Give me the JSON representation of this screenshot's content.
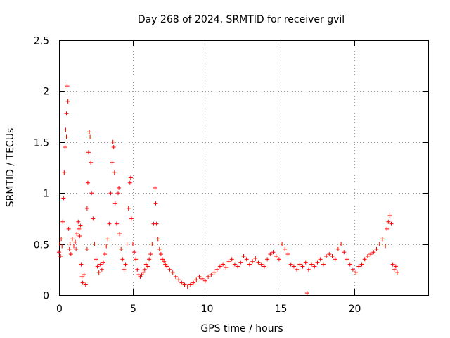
{
  "chart_data": {
    "type": "scatter",
    "title": "Day 268 of 2024, SRMTID for receiver gvil",
    "xlabel": "GPS time / hours",
    "ylabel": "SRMTID / TECUs",
    "xlim": [
      0,
      25
    ],
    "ylim": [
      0,
      2.5
    ],
    "xticks": [
      0,
      5,
      10,
      15,
      20
    ],
    "xtick_labels": [
      "0",
      "5",
      "10",
      "15",
      "20"
    ],
    "yticks": [
      0,
      0.5,
      1,
      1.5,
      2,
      2.5
    ],
    "ytick_labels": [
      "0",
      "0.5",
      "1",
      "1.5",
      "2",
      "2.5"
    ],
    "grid": true,
    "marker": "+",
    "color": "#ff0000",
    "series": [
      {
        "name": "SRMTID",
        "x": [
          0.0,
          0.05,
          0.1,
          0.15,
          0.2,
          0.25,
          0.3,
          0.35,
          0.4,
          0.45,
          0.5,
          0.5,
          0.55,
          0.6,
          0.65,
          0.7,
          0.75,
          0.8,
          0.9,
          1.0,
          1.1,
          1.15,
          1.2,
          1.3,
          1.35,
          1.4,
          1.45,
          1.5,
          1.55,
          1.6,
          1.7,
          1.8,
          1.9,
          1.9,
          1.95,
          2.0,
          2.05,
          2.1,
          2.15,
          2.2,
          2.3,
          2.4,
          2.5,
          2.6,
          2.7,
          2.8,
          2.9,
          3.0,
          3.1,
          3.2,
          3.3,
          3.4,
          3.5,
          3.6,
          3.65,
          3.7,
          3.75,
          3.8,
          3.9,
          4.0,
          4.05,
          4.1,
          4.2,
          4.3,
          4.4,
          4.5,
          4.6,
          4.7,
          4.8,
          4.85,
          4.9,
          5.0,
          5.1,
          5.2,
          5.3,
          5.4,
          5.5,
          5.6,
          5.7,
          5.8,
          5.9,
          6.0,
          6.1,
          6.2,
          6.3,
          6.4,
          6.5,
          6.55,
          6.6,
          6.7,
          6.8,
          6.9,
          7.0,
          7.1,
          7.2,
          7.3,
          7.5,
          7.7,
          7.9,
          8.1,
          8.3,
          8.5,
          8.7,
          8.9,
          9.1,
          9.3,
          9.5,
          9.7,
          9.9,
          10.1,
          10.3,
          10.5,
          10.7,
          10.9,
          11.1,
          11.3,
          11.5,
          11.7,
          11.9,
          12.1,
          12.3,
          12.5,
          12.7,
          12.9,
          13.1,
          13.3,
          13.5,
          13.7,
          13.9,
          14.1,
          14.3,
          14.5,
          14.7,
          14.9,
          15.1,
          15.3,
          15.5,
          15.7,
          15.9,
          16.1,
          16.3,
          16.5,
          16.7,
          16.8,
          16.9,
          17.1,
          17.3,
          17.5,
          17.7,
          17.9,
          18.1,
          18.3,
          18.5,
          18.7,
          18.9,
          19.1,
          19.3,
          19.5,
          19.7,
          19.9,
          20.1,
          20.3,
          20.5,
          20.7,
          20.9,
          21.1,
          21.3,
          21.5,
          21.7,
          21.9,
          22.1,
          22.2,
          22.3,
          22.4,
          22.5,
          22.6,
          22.7,
          22.8,
          22.9
        ],
        "y": [
          0.42,
          0.5,
          0.38,
          0.55,
          0.48,
          0.72,
          0.95,
          1.2,
          1.45,
          1.62,
          1.55,
          1.78,
          2.05,
          1.9,
          0.65,
          0.45,
          0.5,
          0.4,
          0.55,
          0.48,
          0.52,
          0.45,
          0.6,
          0.72,
          0.65,
          0.58,
          0.68,
          0.3,
          0.18,
          0.12,
          0.2,
          0.1,
          0.45,
          0.85,
          1.1,
          1.4,
          1.6,
          1.55,
          1.3,
          1.0,
          0.75,
          0.5,
          0.35,
          0.28,
          0.22,
          0.3,
          0.25,
          0.32,
          0.4,
          0.48,
          0.55,
          0.7,
          1.0,
          1.3,
          1.5,
          1.45,
          1.2,
          0.9,
          0.7,
          1.0,
          1.05,
          0.6,
          0.45,
          0.35,
          0.25,
          0.3,
          0.5,
          0.85,
          1.1,
          1.15,
          0.75,
          0.5,
          0.42,
          0.35,
          0.25,
          0.2,
          0.18,
          0.2,
          0.22,
          0.25,
          0.3,
          0.28,
          0.35,
          0.4,
          0.5,
          0.7,
          1.05,
          0.9,
          0.7,
          0.55,
          0.45,
          0.4,
          0.35,
          0.33,
          0.3,
          0.28,
          0.25,
          0.22,
          0.18,
          0.15,
          0.12,
          0.1,
          0.08,
          0.1,
          0.12,
          0.15,
          0.18,
          0.16,
          0.14,
          0.18,
          0.2,
          0.22,
          0.25,
          0.28,
          0.3,
          0.27,
          0.33,
          0.35,
          0.3,
          0.28,
          0.32,
          0.38,
          0.35,
          0.3,
          0.33,
          0.36,
          0.32,
          0.3,
          0.28,
          0.35,
          0.4,
          0.42,
          0.38,
          0.35,
          0.5,
          0.45,
          0.4,
          0.3,
          0.28,
          0.25,
          0.3,
          0.28,
          0.32,
          0.02,
          0.25,
          0.3,
          0.28,
          0.32,
          0.35,
          0.3,
          0.38,
          0.4,
          0.38,
          0.35,
          0.45,
          0.5,
          0.42,
          0.35,
          0.3,
          0.25,
          0.22,
          0.28,
          0.3,
          0.35,
          0.38,
          0.4,
          0.42,
          0.45,
          0.5,
          0.55,
          0.48,
          0.65,
          0.72,
          0.78,
          0.7,
          0.3,
          0.25,
          0.28,
          0.22
        ]
      }
    ]
  }
}
